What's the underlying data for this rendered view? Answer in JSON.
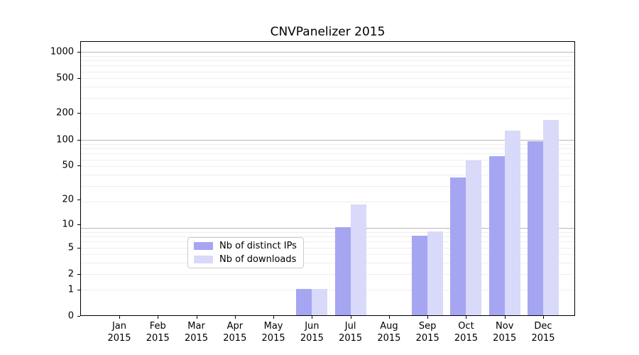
{
  "title": "CNVPanelizer 2015",
  "chart_data": {
    "type": "bar",
    "title": "CNVPanelizer 2015",
    "categories": [
      "Jan",
      "Feb",
      "Mar",
      "Apr",
      "May",
      "Jun",
      "Jul",
      "Aug",
      "Sep",
      "Oct",
      "Nov",
      "Dec"
    ],
    "year": "2015",
    "series": [
      {
        "name": "Nb of distinct IPs",
        "color": "#a5a5f2",
        "values": [
          0,
          0,
          0,
          0,
          0,
          1,
          9,
          0,
          7,
          36,
          63,
          93
        ]
      },
      {
        "name": "Nb of downloads",
        "color": "#d9d9f9",
        "values": [
          0,
          0,
          0,
          0,
          0,
          1,
          17,
          0,
          8,
          56,
          124,
          165
        ]
      }
    ],
    "yticks": [
      1000,
      500,
      200,
      100,
      50,
      20,
      10,
      5,
      2,
      1,
      0
    ],
    "yscale": "log10(1+value)",
    "ylim": [
      0,
      1320
    ],
    "xlabel": "",
    "ylabel": "",
    "grid": "horizontal, log minor + major decade lines",
    "legend_position": "inside bottom-center"
  }
}
